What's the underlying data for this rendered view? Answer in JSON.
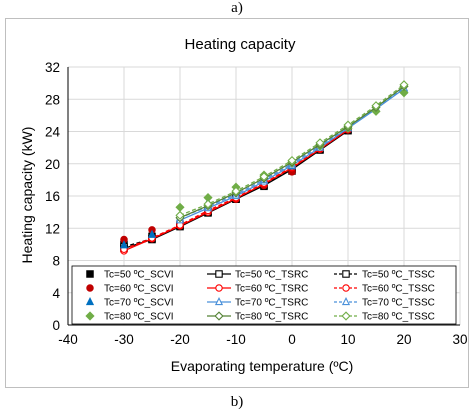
{
  "captions": {
    "top": "a)",
    "bottom": "b)"
  },
  "chart_data": {
    "type": "line",
    "title": "Heating capacity",
    "xlabel": "Evaporating temperature (ºC)",
    "ylabel": "Heating capacity (kW)",
    "xlim": [
      -40,
      30
    ],
    "ylim": [
      0,
      32
    ],
    "xticks": [
      -40,
      -30,
      -20,
      -10,
      0,
      10,
      20,
      30
    ],
    "yticks": [
      0,
      4,
      8,
      12,
      16,
      20,
      24,
      28,
      32
    ],
    "grid": true,
    "legend_position": "bottom",
    "series": [
      {
        "name": "Tc=50 ºC_SCVI",
        "color": "#000000",
        "marker": "square-filled",
        "line": "none",
        "x": [
          -30,
          -25,
          -20,
          -15,
          -10,
          -5,
          0
        ],
        "y": [
          10.0,
          11.0,
          12.4,
          14.1,
          15.6,
          17.2,
          19.1
        ]
      },
      {
        "name": "Tc=50 ºC_TSRC",
        "color": "#000000",
        "marker": "square-open",
        "line": "solid",
        "x": [
          -30,
          -25,
          -20,
          -15,
          -10,
          -5,
          0,
          5,
          10
        ],
        "y": [
          9.5,
          10.6,
          12.2,
          13.9,
          15.6,
          17.3,
          19.3,
          21.7,
          24.1
        ]
      },
      {
        "name": "Tc=50 ºC_TSSC",
        "color": "#000000",
        "marker": "square-open",
        "line": "dashed",
        "x": [
          -30,
          -25,
          -20,
          -15,
          -10,
          -5,
          0,
          5,
          10
        ],
        "y": [
          9.7,
          10.7,
          12.3,
          14.0,
          15.7,
          17.4,
          19.4,
          21.8,
          24.2
        ]
      },
      {
        "name": "Tc=60 ºC_SCVI",
        "color": "#c00000",
        "marker": "circle-filled",
        "line": "none",
        "x": [
          -30,
          -25,
          -20,
          -15,
          -10,
          -5,
          0
        ],
        "y": [
          10.6,
          11.8,
          12.5,
          14.3,
          15.6,
          17.3,
          19.0
        ]
      },
      {
        "name": "Tc=60 ºC_TSRC",
        "color": "#ff0000",
        "marker": "circle-open",
        "line": "solid",
        "x": [
          -30,
          -25,
          -20,
          -15,
          -10,
          -5,
          0,
          5,
          10
        ],
        "y": [
          9.2,
          10.7,
          12.3,
          14.0,
          15.7,
          17.5,
          19.5,
          21.8,
          24.2
        ]
      },
      {
        "name": "Tc=60 ºC_TSSC",
        "color": "#ff0000",
        "marker": "circle-open",
        "line": "dashed",
        "x": [
          -30,
          -25,
          -20,
          -15,
          -10,
          -5,
          0,
          5,
          10
        ],
        "y": [
          9.4,
          10.8,
          12.4,
          14.2,
          15.8,
          17.6,
          19.6,
          21.9,
          24.3
        ]
      },
      {
        "name": "Tc=70 ºC_SCVI",
        "color": "#0070c0",
        "marker": "triangle-filled",
        "line": "none",
        "x": [
          -30,
          -25,
          -20,
          -15,
          -10,
          -5,
          0
        ],
        "y": [
          9.9,
          11.2,
          13.6,
          15.2,
          16.5,
          17.9,
          19.7
        ]
      },
      {
        "name": "Tc=70 ºC_TSRC",
        "color": "#4a90d9",
        "marker": "triangle-open",
        "line": "solid",
        "x": [
          -20,
          -15,
          -10,
          -5,
          0,
          5,
          10,
          15,
          20
        ],
        "y": [
          13.0,
          14.5,
          16.0,
          17.8,
          19.8,
          22.0,
          24.4,
          26.8,
          29.3
        ]
      },
      {
        "name": "Tc=70 ºC_TSSC",
        "color": "#4a90d9",
        "marker": "triangle-open",
        "line": "dashed",
        "x": [
          -20,
          -15,
          -10,
          -5,
          0,
          5,
          10,
          15,
          20
        ],
        "y": [
          13.3,
          14.7,
          16.2,
          18.0,
          20.0,
          22.2,
          24.5,
          26.9,
          29.4
        ]
      },
      {
        "name": "Tc=80 ºC_SCVI",
        "color": "#70ad47",
        "marker": "diamond-filled",
        "line": "none",
        "x": [
          -20,
          -15,
          -10,
          -5,
          0,
          5,
          10,
          15,
          20
        ],
        "y": [
          14.6,
          15.8,
          17.1,
          18.6,
          20.1,
          22.2,
          24.4,
          26.5,
          28.8
        ]
      },
      {
        "name": "Tc=80 ºC_TSRC",
        "color": "#548235",
        "marker": "diamond-open",
        "line": "solid",
        "x": [
          -20,
          -15,
          -10,
          -5,
          0,
          5,
          10,
          15,
          20
        ],
        "y": [
          13.3,
          14.8,
          16.4,
          18.2,
          20.2,
          22.4,
          24.6,
          27.0,
          29.6
        ]
      },
      {
        "name": "Tc=80 ºC_TSSC",
        "color": "#70ad47",
        "marker": "diamond-open",
        "line": "dashed",
        "x": [
          -20,
          -15,
          -10,
          -5,
          0,
          5,
          10,
          15,
          20
        ],
        "y": [
          13.6,
          15.0,
          16.6,
          18.4,
          20.4,
          22.6,
          24.8,
          27.2,
          29.8
        ]
      }
    ]
  }
}
